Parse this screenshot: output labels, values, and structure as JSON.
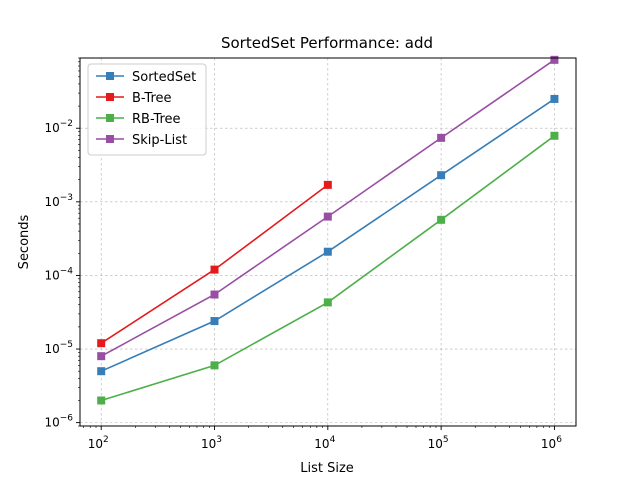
{
  "chart_data": {
    "type": "line",
    "title": "SortedSet Performance: add",
    "xlabel": "List Size",
    "ylabel": "Seconds",
    "xscale": "log",
    "yscale": "log",
    "xlim": [
      65,
      1550000
    ],
    "ylim": [
      9e-07,
      0.09
    ],
    "xticks": [
      {
        "value": 100,
        "base": "10",
        "exp": "2"
      },
      {
        "value": 1000,
        "base": "10",
        "exp": "3"
      },
      {
        "value": 10000,
        "base": "10",
        "exp": "4"
      },
      {
        "value": 100000,
        "base": "10",
        "exp": "5"
      },
      {
        "value": 1000000,
        "base": "10",
        "exp": "6"
      }
    ],
    "yticks": [
      {
        "value": 1e-06,
        "base": "10",
        "exp": "−6"
      },
      {
        "value": 1e-05,
        "base": "10",
        "exp": "−5"
      },
      {
        "value": 0.0001,
        "base": "10",
        "exp": "−4"
      },
      {
        "value": 0.001,
        "base": "10",
        "exp": "−3"
      },
      {
        "value": 0.01,
        "base": "10",
        "exp": "−2"
      }
    ],
    "grid": true,
    "legend_position": "top-left",
    "series": [
      {
        "name": "SortedSet",
        "color": "#377eb8",
        "x": [
          100,
          1000,
          10000,
          100000,
          1000000
        ],
        "y": [
          5e-06,
          2.4e-05,
          0.00021,
          0.0023,
          0.025
        ]
      },
      {
        "name": "B-Tree",
        "color": "#e41a1c",
        "x": [
          100,
          1000,
          10000
        ],
        "y": [
          1.2e-05,
          0.00012,
          0.0017
        ]
      },
      {
        "name": "RB-Tree",
        "color": "#4daf4a",
        "x": [
          100,
          1000,
          10000,
          100000,
          1000000
        ],
        "y": [
          2e-06,
          6e-06,
          4.3e-05,
          0.00057,
          0.0079
        ]
      },
      {
        "name": "Skip-List",
        "color": "#984ea3",
        "x": [
          100,
          1000,
          10000,
          100000,
          1000000
        ],
        "y": [
          8e-06,
          5.5e-05,
          0.00063,
          0.0074,
          0.085
        ]
      }
    ]
  }
}
